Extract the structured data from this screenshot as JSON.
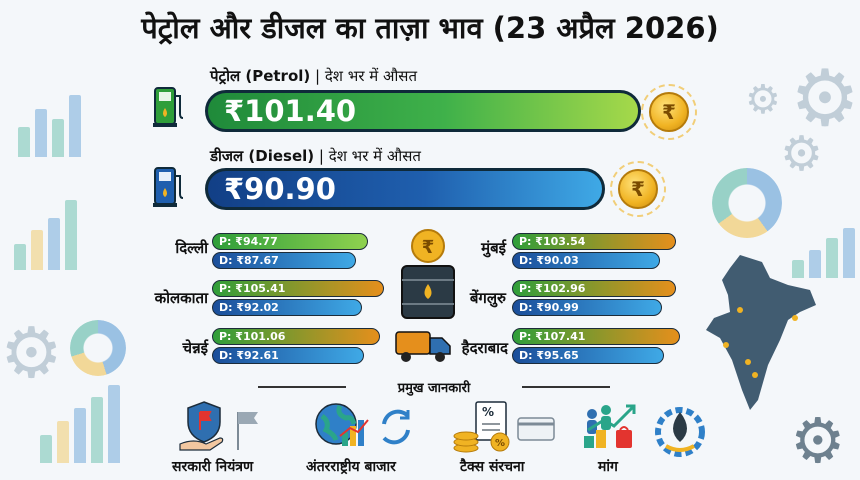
{
  "title": "पेट्रोल और डीजल का ताज़ा भाव (23 अप्रैल 2026)",
  "petrol": {
    "label": "पेट्रोल (Petrol)",
    "sublabel": " | देश भर में औसत",
    "price": "₹101.40"
  },
  "diesel": {
    "label": "डीजल (Diesel)",
    "sublabel": " | देश भर में औसत",
    "price": "₹90.90"
  },
  "coin_symbol": "₹",
  "cities": [
    {
      "name": "दिल्ली",
      "petrol": "P: ₹94.77",
      "diesel": "D: ₹87.67"
    },
    {
      "name": "मुंबई",
      "petrol": "P: ₹103.54",
      "diesel": "D: ₹90.03"
    },
    {
      "name": "कोलकाता",
      "petrol": "P: ₹105.41",
      "diesel": "D: ₹92.02"
    },
    {
      "name": "बेंगलुरु",
      "petrol": "P: ₹102.96",
      "diesel": "D: ₹90.99"
    },
    {
      "name": "चेन्नई",
      "petrol": "P: ₹101.06",
      "diesel": "D: ₹92.61"
    },
    {
      "name": "हैदराबाद",
      "petrol": "P: ₹107.41",
      "diesel": "D: ₹95.65"
    }
  ],
  "section_heading": "प्रमुख जानकारी",
  "info_items": [
    {
      "label": "सरकारी नियंत्रण",
      "icon": "government-control-icon"
    },
    {
      "label": "अंतरराष्ट्रीय बाजार",
      "icon": "global-market-icon"
    },
    {
      "label": "टैक्स संरचना",
      "icon": "tax-structure-icon"
    },
    {
      "label": "मांग",
      "icon": "demand-icon"
    }
  ],
  "colors": {
    "petrol_bar": "#3fa83a",
    "diesel_bar": "#1f5fae",
    "coin": "#f0b323"
  }
}
